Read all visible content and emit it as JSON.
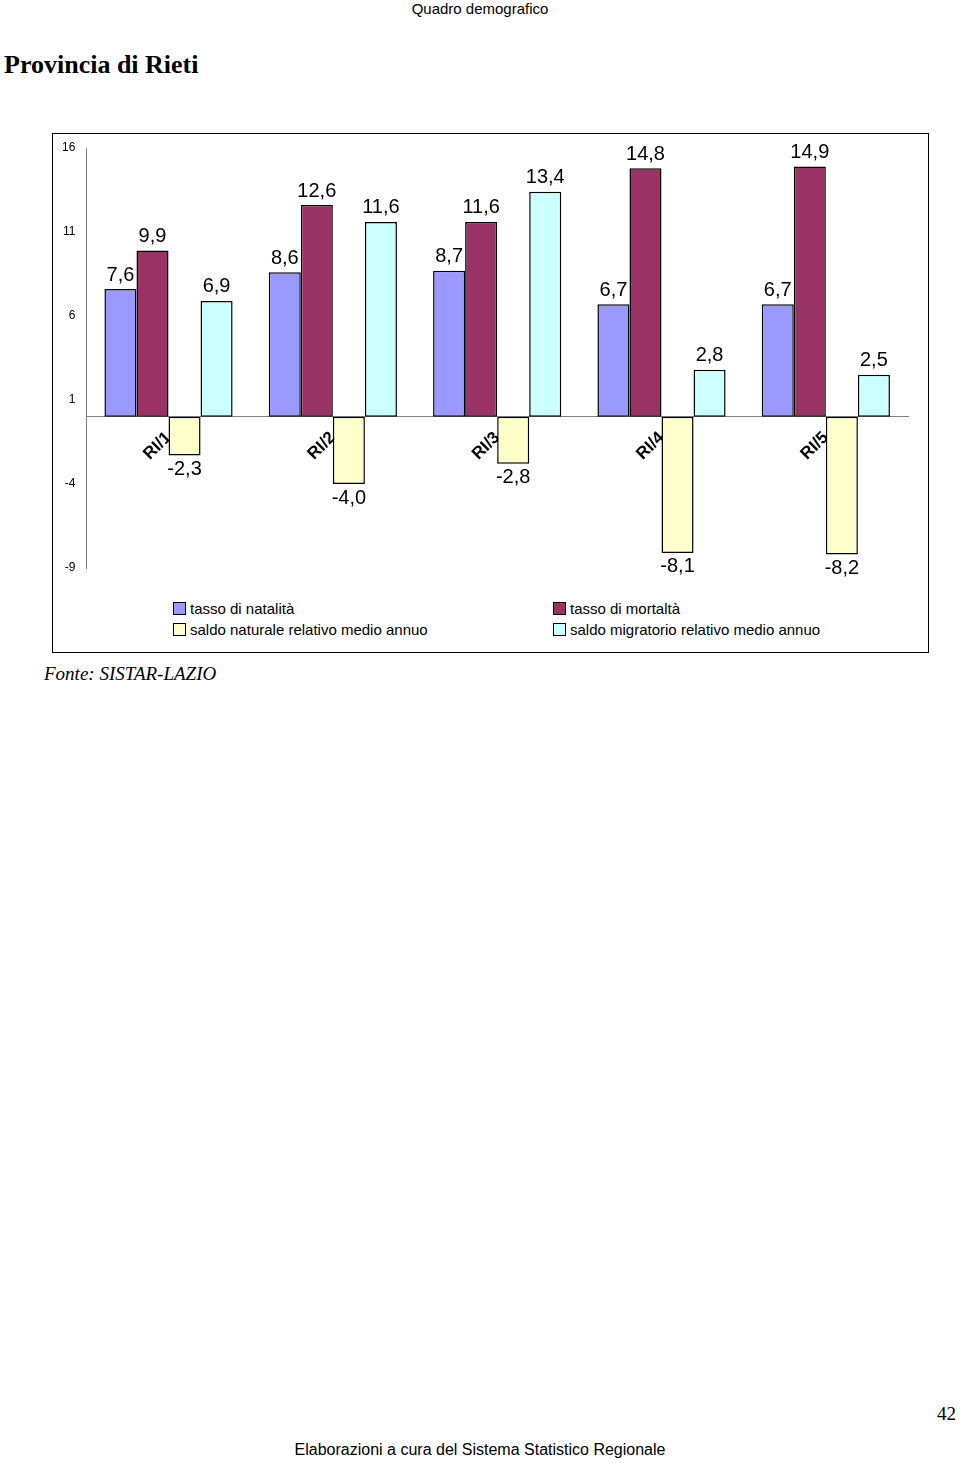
{
  "header": "Quadro demografico",
  "chart_data": {
    "type": "bar",
    "title": "Provincia di Rieti",
    "categories": [
      "RI/1",
      "RI/2",
      "RI/3",
      "RI/4",
      "RI/5"
    ],
    "series": [
      {
        "name": "tasso di natalità",
        "color": "#9999ff",
        "values": [
          7.6,
          8.6,
          8.7,
          6.7,
          6.7
        ],
        "value_labels": [
          "7,6",
          "8,6",
          "8,7",
          "6,7",
          "6,7"
        ]
      },
      {
        "name": "tasso di mortaltà",
        "color": "#993366",
        "values": [
          9.9,
          12.6,
          11.6,
          14.8,
          14.9
        ],
        "value_labels": [
          "9,9",
          "12,6",
          "11,6",
          "14,8",
          "14,9"
        ]
      },
      {
        "name": "saldo naturale relativo medio annuo",
        "color": "#ffffcc",
        "values": [
          -2.3,
          -4.0,
          -2.8,
          -8.1,
          -8.2
        ],
        "value_labels": [
          "-2,3",
          "-4,0",
          "-2,8",
          "-8,1",
          "-8,2"
        ]
      },
      {
        "name": "saldo migratorio relativo medio annuo",
        "color": "#ccffff",
        "values": [
          6.9,
          11.6,
          13.4,
          2.8,
          2.5
        ],
        "value_labels": [
          "6,9",
          "11,6",
          "13,4",
          "2,8",
          "2,5"
        ]
      }
    ],
    "ylim": [
      -9,
      16
    ],
    "yticks": [
      -9,
      -4,
      1,
      6,
      11,
      16
    ],
    "grid": false,
    "legend": "bottom",
    "data_labels": true
  },
  "source": "Fonte: SISTAR-LAZIO",
  "page_number": "42",
  "footer": "Elaborazioni a cura del Sistema Statistico Regionale"
}
